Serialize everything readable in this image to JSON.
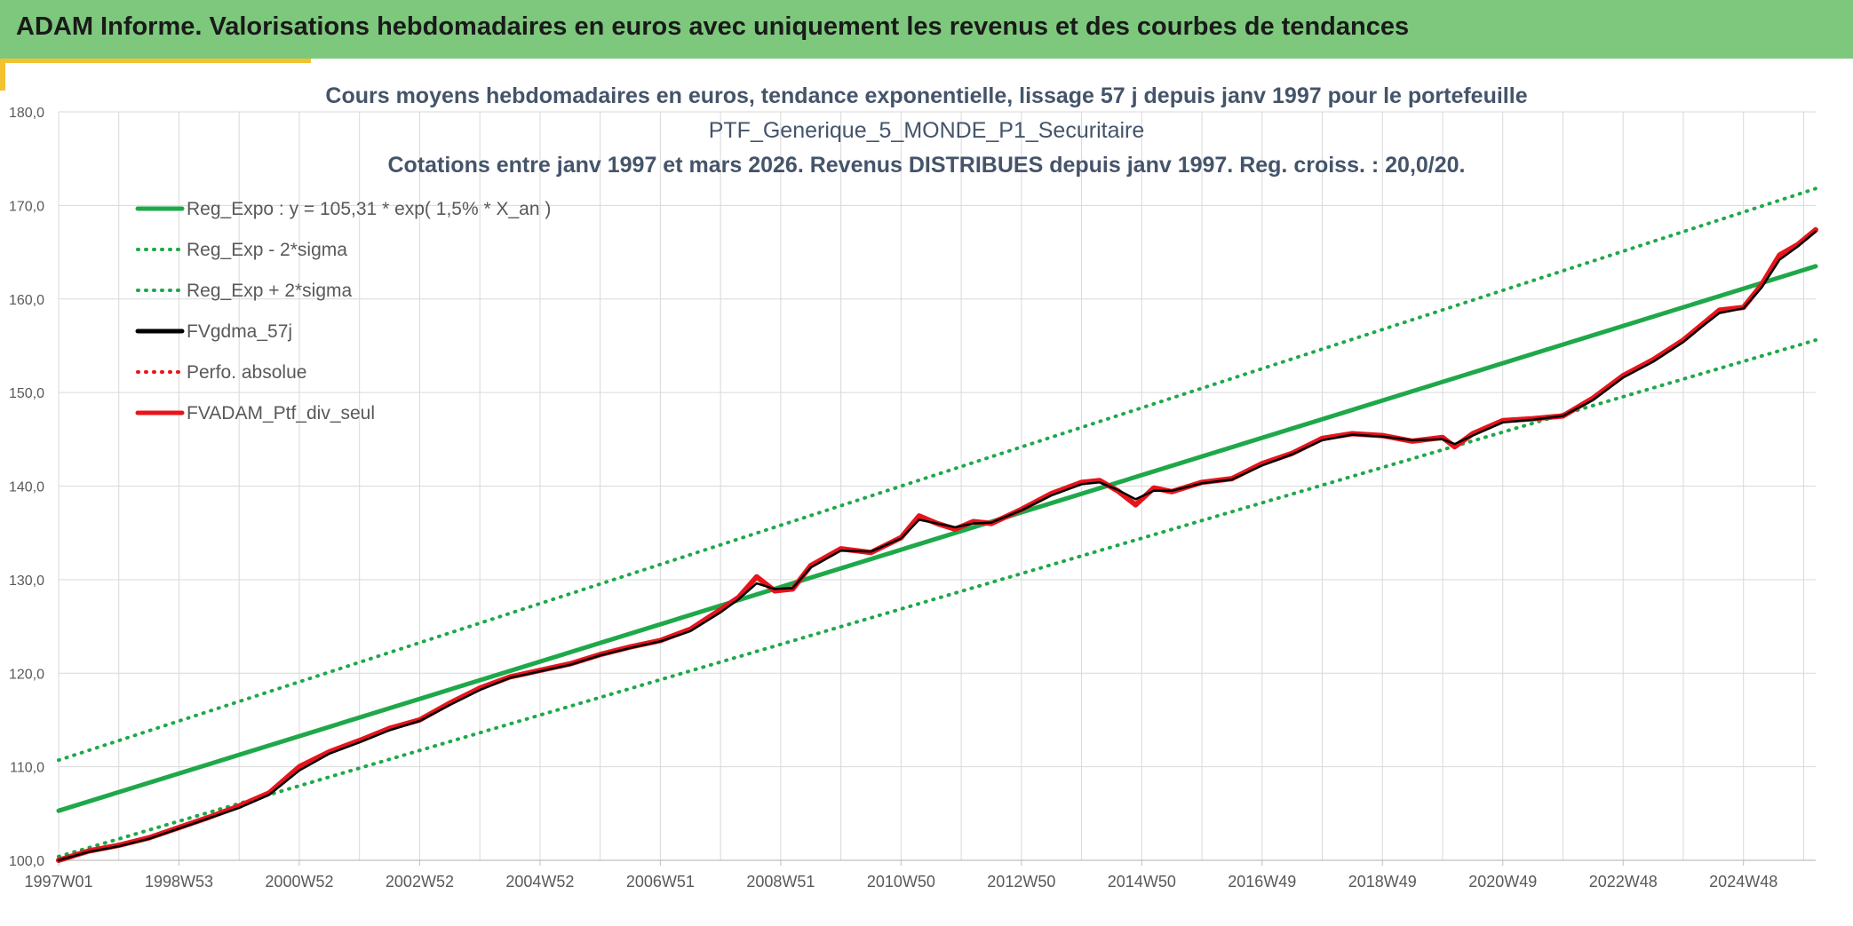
{
  "banner": {
    "title": "ADAM Informe. Valorisations hebdomadaires en euros avec uniquement les revenus et des courbes de tendances"
  },
  "colors": {
    "banner_bg": "#7dc87d",
    "accent": "#f2c230",
    "trend_green": "#1fa84a",
    "gdma_black": "#000000",
    "ptf_red": "#e8141c",
    "title_text": "#44546a",
    "axis_text": "#595959",
    "grid": "#d9d9d9"
  },
  "chart_data": {
    "type": "line",
    "title_lines": [
      "Cours moyens hebdomadaires en euros, tendance exponentielle, lissage 57 j depuis janv 1997 pour le portefeuille",
      "PTF_Generique_5_MONDE_P1_Securitaire",
      "Cotations entre janv 1997 et mars 2026. Revenus DISTRIBUES depuis janv 1997. Reg. croiss. : 20,0/20."
    ],
    "ylim": [
      100,
      180
    ],
    "yticks": [
      "100,0",
      "110,0",
      "120,0",
      "130,0",
      "140,0",
      "150,0",
      "160,0",
      "170,0",
      "180,0"
    ],
    "xlim": [
      1997.0,
      2026.2
    ],
    "xticks": [
      {
        "label": "1997W01",
        "x": 1997.0
      },
      {
        "label": "1998W53",
        "x": 1999.0
      },
      {
        "label": "2000W52",
        "x": 2001.0
      },
      {
        "label": "2002W52",
        "x": 2003.0
      },
      {
        "label": "2004W52",
        "x": 2005.0
      },
      {
        "label": "2006W51",
        "x": 2007.0
      },
      {
        "label": "2008W51",
        "x": 2009.0
      },
      {
        "label": "2010W50",
        "x": 2011.0
      },
      {
        "label": "2012W50",
        "x": 2013.0
      },
      {
        "label": "2014W50",
        "x": 2015.0
      },
      {
        "label": "2016W49",
        "x": 2017.0
      },
      {
        "label": "2018W49",
        "x": 2019.0
      },
      {
        "label": "2020W49",
        "x": 2021.0
      },
      {
        "label": "2022W48",
        "x": 2023.0
      },
      {
        "label": "2024W48",
        "x": 2025.0
      }
    ],
    "grid": true,
    "legend_placement": "top-left",
    "legend": [
      {
        "label": "Reg_Expo : y = 105,31 * exp( 1,5% *  X_an )",
        "color": "#1fa84a",
        "style": "solid"
      },
      {
        "label": "Reg_Exp - 2*sigma",
        "color": "#1fa84a",
        "style": "dotted"
      },
      {
        "label": "Reg_Exp + 2*sigma",
        "color": "#1fa84a",
        "style": "dotted"
      },
      {
        "label": "FVgdma_57j",
        "color": "#000000",
        "style": "solid"
      },
      {
        "label": "Perfo. absolue",
        "color": "#e8141c",
        "style": "dotted"
      },
      {
        "label": "FVADAM_Ptf_div_seul",
        "color": "#e8141c",
        "style": "solid"
      }
    ],
    "series": [
      {
        "name": "Reg_Expo : y = 105,31 * exp( 1,5% *  X_an )",
        "x": [
          1997.0,
          2026.2
        ],
        "y": [
          105.3,
          163.5
        ]
      },
      {
        "name": "Reg_Exp - 2*sigma",
        "x": [
          1997.0,
          2026.2
        ],
        "y": [
          100.4,
          155.6
        ]
      },
      {
        "name": "Reg_Exp + 2*sigma",
        "x": [
          1997.0,
          2026.2
        ],
        "y": [
          110.7,
          171.8
        ]
      },
      {
        "name": "FVADAM_Ptf_div_seul",
        "x": [
          1997.0,
          1997.5,
          1998.0,
          1998.5,
          1999.0,
          1999.5,
          2000.0,
          2000.5,
          2001.0,
          2001.5,
          2002.0,
          2002.5,
          2003.0,
          2003.5,
          2004.0,
          2004.5,
          2005.0,
          2005.5,
          2006.0,
          2006.5,
          2007.0,
          2007.5,
          2008.0,
          2008.3,
          2008.6,
          2008.9,
          2009.2,
          2009.5,
          2010.0,
          2010.5,
          2011.0,
          2011.3,
          2011.6,
          2011.9,
          2012.2,
          2012.5,
          2013.0,
          2013.5,
          2014.0,
          2014.3,
          2014.6,
          2014.9,
          2015.2,
          2015.5,
          2016.0,
          2016.5,
          2017.0,
          2017.5,
          2018.0,
          2018.5,
          2019.0,
          2019.5,
          2020.0,
          2020.2,
          2020.5,
          2021.0,
          2021.5,
          2022.0,
          2022.5,
          2023.0,
          2023.5,
          2024.0,
          2024.3,
          2024.6,
          2025.0,
          2025.3,
          2025.6,
          2025.9,
          2026.2
        ],
        "y": [
          100.0,
          101.0,
          101.6,
          102.4,
          103.5,
          104.6,
          105.8,
          107.2,
          110.0,
          111.6,
          112.8,
          114.1,
          115.0,
          116.8,
          118.4,
          119.6,
          120.3,
          121.0,
          122.0,
          122.8,
          123.5,
          124.7,
          126.8,
          128.1,
          130.3,
          128.8,
          129.0,
          131.5,
          133.3,
          132.9,
          134.5,
          136.8,
          136.0,
          135.4,
          136.2,
          136.0,
          137.5,
          139.2,
          140.4,
          140.6,
          139.5,
          138.0,
          139.8,
          139.4,
          140.4,
          140.8,
          142.4,
          143.5,
          145.1,
          145.6,
          145.4,
          144.8,
          145.2,
          144.2,
          145.6,
          147.0,
          147.2,
          147.5,
          149.4,
          151.8,
          153.5,
          155.6,
          157.2,
          158.8,
          159.1,
          161.5,
          164.7,
          165.8,
          167.4
        ]
      },
      {
        "name": "FVgdma_57j",
        "x": [
          1997.0,
          1997.5,
          1998.0,
          1998.5,
          1999.0,
          1999.5,
          2000.0,
          2000.5,
          2001.0,
          2001.5,
          2002.0,
          2002.5,
          2003.0,
          2003.5,
          2004.0,
          2004.5,
          2005.0,
          2005.5,
          2006.0,
          2006.5,
          2007.0,
          2007.5,
          2008.0,
          2008.3,
          2008.6,
          2008.9,
          2009.2,
          2009.5,
          2010.0,
          2010.5,
          2011.0,
          2011.3,
          2011.6,
          2011.9,
          2012.2,
          2012.5,
          2013.0,
          2013.5,
          2014.0,
          2014.3,
          2014.6,
          2014.9,
          2015.2,
          2015.5,
          2016.0,
          2016.5,
          2017.0,
          2017.5,
          2018.0,
          2018.5,
          2019.0,
          2019.5,
          2020.0,
          2020.2,
          2020.5,
          2021.0,
          2021.5,
          2022.0,
          2022.5,
          2023.0,
          2023.5,
          2024.0,
          2024.3,
          2024.6,
          2025.0,
          2025.3,
          2025.6,
          2025.9,
          2026.2
        ],
        "y": [
          100.0,
          100.9,
          101.5,
          102.3,
          103.4,
          104.5,
          105.6,
          107.0,
          109.6,
          111.4,
          112.6,
          113.9,
          114.9,
          116.6,
          118.2,
          119.5,
          120.2,
          120.9,
          121.9,
          122.7,
          123.4,
          124.5,
          126.5,
          127.9,
          129.6,
          129.0,
          129.1,
          131.3,
          133.1,
          133.0,
          134.4,
          136.4,
          136.0,
          135.6,
          136.0,
          136.1,
          137.4,
          139.0,
          140.2,
          140.4,
          139.6,
          138.6,
          139.5,
          139.5,
          140.3,
          140.7,
          142.2,
          143.4,
          144.9,
          145.5,
          145.3,
          144.9,
          145.0,
          144.5,
          145.4,
          146.8,
          147.1,
          147.5,
          149.2,
          151.6,
          153.3,
          155.4,
          157.0,
          158.5,
          159.0,
          161.2,
          164.2,
          165.6,
          167.2
        ]
      }
    ]
  }
}
